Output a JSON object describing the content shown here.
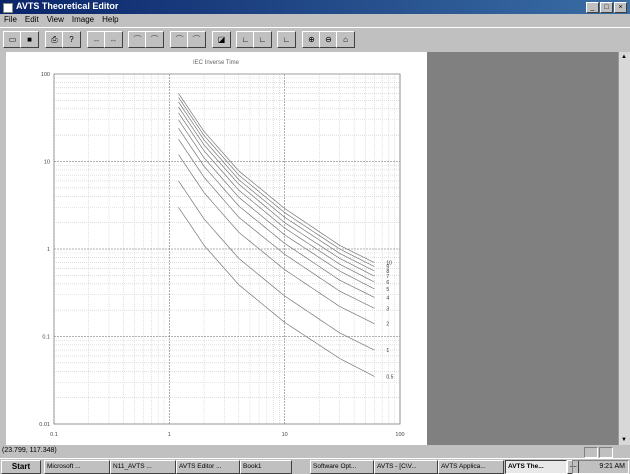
{
  "window": {
    "title": "AVTS Theoretical Editor",
    "buttons": [
      "_",
      "□",
      "×"
    ]
  },
  "menu": [
    "File",
    "Edit",
    "View",
    "Image",
    "Help"
  ],
  "toolbar": {
    "icons": [
      "new-doc",
      "open",
      "print",
      "help",
      "zoom-a",
      "zoom-b",
      "curve-a",
      "curve-b",
      "curve-c",
      "curve-d",
      "curve-e",
      "curve-f",
      "zoom-in",
      "zoom-out",
      "zoom-fit"
    ]
  },
  "chart_data": {
    "type": "line",
    "title": "IEC Inverse Time",
    "xscale": "log",
    "yscale": "log",
    "xlim": [
      0.1,
      100
    ],
    "ylim": [
      0.01,
      100
    ],
    "x_ticks": [
      "0.1",
      "1",
      "10",
      "100"
    ],
    "y_ticks": [
      "100",
      "10",
      "1",
      "0.1",
      "0.01"
    ],
    "grid": true,
    "series": [
      {
        "name": "10",
        "x": [
          1.2,
          2,
          4,
          10,
          30,
          60
        ],
        "y": [
          60,
          22,
          7.8,
          2.9,
          1.1,
          0.7
        ]
      },
      {
        "name": "9",
        "x": [
          1.2,
          2,
          4,
          10,
          30,
          60
        ],
        "y": [
          54,
          19.8,
          7,
          2.6,
          1.0,
          0.63
        ]
      },
      {
        "name": "8",
        "x": [
          1.2,
          2,
          4,
          10,
          30,
          60
        ],
        "y": [
          48,
          17.6,
          6.2,
          2.3,
          0.89,
          0.56
        ]
      },
      {
        "name": "7",
        "x": [
          1.2,
          2,
          4,
          10,
          30,
          60
        ],
        "y": [
          42,
          15.4,
          5.5,
          2.0,
          0.78,
          0.49
        ]
      },
      {
        "name": "6",
        "x": [
          1.2,
          2,
          4,
          10,
          30,
          60
        ],
        "y": [
          36,
          13.2,
          4.7,
          1.74,
          0.67,
          0.42
        ]
      },
      {
        "name": "5",
        "x": [
          1.2,
          2,
          4,
          10,
          30,
          60
        ],
        "y": [
          30,
          11,
          3.9,
          1.45,
          0.56,
          0.35
        ]
      },
      {
        "name": "4",
        "x": [
          1.2,
          2,
          4,
          10,
          30,
          60
        ],
        "y": [
          24,
          8.8,
          3.1,
          1.16,
          0.44,
          0.28
        ]
      },
      {
        "name": "3",
        "x": [
          1.2,
          2,
          4,
          10,
          30,
          60
        ],
        "y": [
          18,
          6.6,
          2.3,
          0.87,
          0.33,
          0.21
        ]
      },
      {
        "name": "2",
        "x": [
          1.2,
          2,
          4,
          10,
          30,
          60
        ],
        "y": [
          12,
          4.4,
          1.55,
          0.58,
          0.22,
          0.14
        ]
      },
      {
        "name": "1",
        "x": [
          1.2,
          2,
          4,
          10,
          30,
          60
        ],
        "y": [
          6,
          2.2,
          0.78,
          0.29,
          0.11,
          0.07
        ]
      },
      {
        "name": "0.5",
        "x": [
          1.2,
          2,
          4,
          10,
          30,
          60
        ],
        "y": [
          3,
          1.1,
          0.39,
          0.145,
          0.056,
          0.035
        ]
      }
    ]
  },
  "status": {
    "coords": "(23.799, 117.348)"
  },
  "taskbar": {
    "start": "Start",
    "tasks": [
      "Microsoft ...",
      "N11_AVTS ...",
      "AVTS Editor ...",
      "Book1",
      "Software Opt...",
      "AVTS - [C\\V...",
      "AVTS Applica...",
      "AVTS The...",
      "—"
    ],
    "clock": "9:21 AM"
  }
}
